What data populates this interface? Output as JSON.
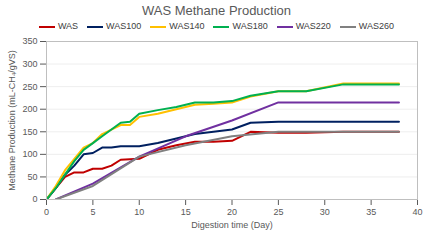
{
  "chart_data": {
    "type": "line",
    "title": "WAS Methane Production",
    "x_label": "Digestion time (Day)",
    "y_label": "Methane Production (mL-CH₄/gVS)",
    "xlim": [
      0,
      40
    ],
    "xticks": [
      0,
      5,
      10,
      15,
      20,
      25,
      30,
      35,
      40
    ],
    "ylim": [
      0,
      350
    ],
    "yticks": [
      0,
      50,
      100,
      150,
      200,
      250,
      300,
      350
    ],
    "grid": true,
    "legend": "top",
    "series": [
      {
        "name": "WAS",
        "color": "#c00000",
        "x": [
          0,
          1,
          2,
          3,
          4,
          5,
          6,
          7,
          8,
          10,
          12,
          14,
          16,
          18,
          20,
          22,
          25,
          28,
          32,
          35,
          38
        ],
        "values": [
          0,
          25,
          50,
          60,
          60,
          68,
          68,
          75,
          88,
          90,
          110,
          120,
          128,
          128,
          130,
          150,
          148,
          148,
          150,
          150,
          150
        ]
      },
      {
        "name": "WAS100",
        "color": "#002060",
        "x": [
          0,
          1,
          2,
          3,
          4,
          5,
          6,
          7,
          8,
          10,
          12,
          14,
          16,
          18,
          20,
          22,
          25,
          28,
          32,
          35,
          38
        ],
        "values": [
          0,
          25,
          55,
          75,
          100,
          103,
          115,
          115,
          118,
          118,
          125,
          135,
          145,
          150,
          155,
          170,
          172,
          172,
          172,
          172,
          172
        ]
      },
      {
        "name": "WAS140",
        "color": "#ffc000",
        "x": [
          0,
          1,
          2,
          3,
          4,
          5,
          6,
          7,
          8,
          9,
          10,
          12,
          14,
          16,
          18,
          20,
          22,
          25,
          28,
          32,
          35,
          38
        ],
        "values": [
          0,
          30,
          65,
          90,
          115,
          125,
          145,
          155,
          165,
          165,
          183,
          190,
          200,
          210,
          212,
          215,
          228,
          240,
          240,
          257,
          257,
          257
        ]
      },
      {
        "name": "WAS180",
        "color": "#00b050",
        "x": [
          0,
          1,
          2,
          3,
          4,
          5,
          6,
          7,
          8,
          9,
          10,
          12,
          14,
          16,
          18,
          20,
          22,
          25,
          28,
          32,
          35,
          38
        ],
        "values": [
          0,
          25,
          55,
          85,
          110,
          125,
          140,
          155,
          170,
          172,
          190,
          198,
          205,
          215,
          215,
          218,
          230,
          240,
          240,
          255,
          255,
          255
        ]
      },
      {
        "name": "WAS220",
        "color": "#7030a0",
        "x": [
          1,
          5,
          10,
          15,
          20,
          25,
          30,
          38
        ],
        "values": [
          0,
          35,
          95,
          140,
          175,
          215,
          215,
          215
        ]
      },
      {
        "name": "WAS260",
        "color": "#808080",
        "x": [
          1,
          5,
          10,
          15,
          20,
          25,
          30,
          38
        ],
        "values": [
          0,
          30,
          95,
          120,
          140,
          150,
          150,
          150
        ]
      }
    ]
  }
}
